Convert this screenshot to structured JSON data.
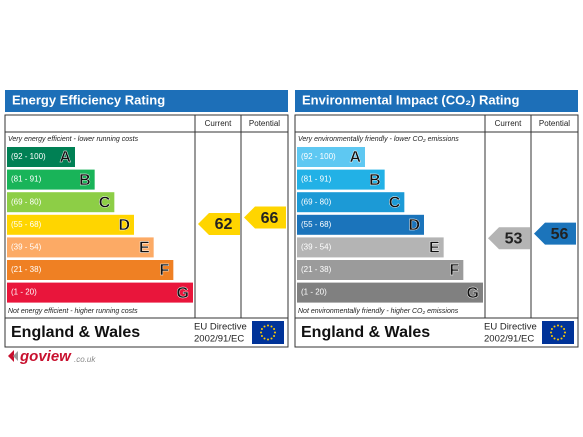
{
  "panels": [
    {
      "title": "Energy Efficiency Rating",
      "current_header": "Current",
      "potential_header": "Potential",
      "top_note": "Very energy efficient - lower running costs",
      "bottom_note": "Not energy efficient - higher running costs",
      "bands": [
        {
          "range": "(92 - 100)",
          "min": 92,
          "max": 100,
          "letter": "A",
          "color": "#008054"
        },
        {
          "range": "(81 - 91)",
          "min": 81,
          "max": 91,
          "letter": "B",
          "color": "#19b459"
        },
        {
          "range": "(69 - 80)",
          "min": 69,
          "max": 80,
          "letter": "C",
          "color": "#8dce46"
        },
        {
          "range": "(55 - 68)",
          "min": 55,
          "max": 68,
          "letter": "D",
          "color": "#ffd500"
        },
        {
          "range": "(39 - 54)",
          "min": 39,
          "max": 54,
          "letter": "E",
          "color": "#fcaa65"
        },
        {
          "range": "(21 - 38)",
          "min": 21,
          "max": 38,
          "letter": "F",
          "color": "#ef8023"
        },
        {
          "range": "(1 - 20)",
          "min": 1,
          "max": 20,
          "letter": "G",
          "color": "#e9153b"
        }
      ],
      "current": 62,
      "potential": 66,
      "region": "England & Wales",
      "directive": "EU Directive",
      "directive_code": "2002/91/EC"
    },
    {
      "title": "Environmental Impact (CO₂) Rating",
      "current_header": "Current",
      "potential_header": "Potential",
      "top_note": "Very environmentally friendly - lower CO₂ emissions",
      "bottom_note": "Not environmentally friendly - higher CO₂ emissions",
      "bands": [
        {
          "range": "(92 - 100)",
          "min": 92,
          "max": 100,
          "letter": "A",
          "color": "#5ec8f2"
        },
        {
          "range": "(81 - 91)",
          "min": 81,
          "max": 91,
          "letter": "B",
          "color": "#22b1e6"
        },
        {
          "range": "(69 - 80)",
          "min": 69,
          "max": 80,
          "letter": "C",
          "color": "#1c9ad6"
        },
        {
          "range": "(55 - 68)",
          "min": 55,
          "max": 68,
          "letter": "D",
          "color": "#1b74bb"
        },
        {
          "range": "(39 - 54)",
          "min": 39,
          "max": 54,
          "letter": "E",
          "color": "#b4b4b4"
        },
        {
          "range": "(21 - 38)",
          "min": 21,
          "max": 38,
          "letter": "F",
          "color": "#9b9b9b"
        },
        {
          "range": "(1 - 20)",
          "min": 1,
          "max": 20,
          "letter": "G",
          "color": "#808080"
        }
      ],
      "current": 53,
      "potential": 56,
      "region": "England & Wales",
      "directive": "EU Directive",
      "directive_code": "2002/91/EC"
    }
  ],
  "logo": {
    "brand": "goview",
    "domain": ".co.uk"
  }
}
